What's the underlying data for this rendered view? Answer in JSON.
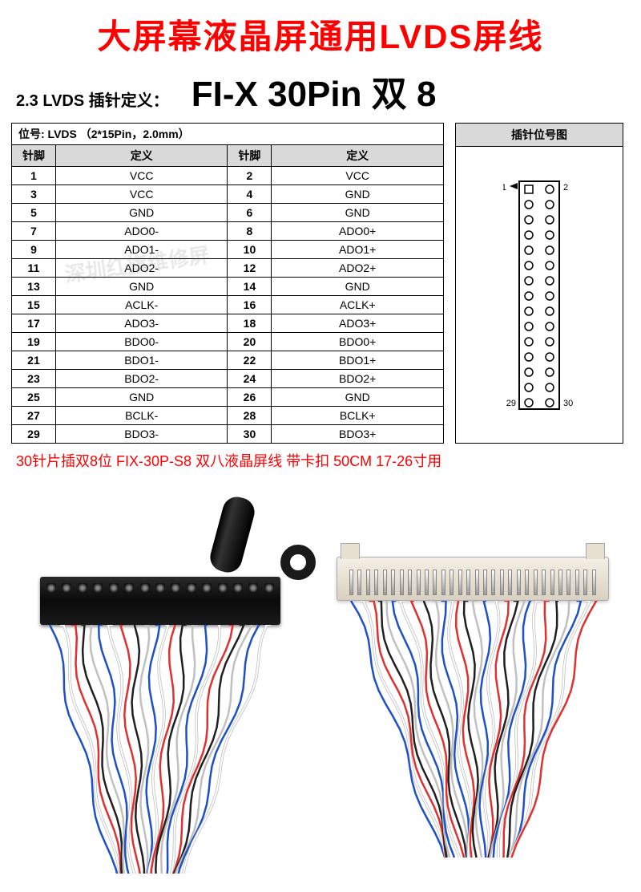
{
  "title": "大屏幕液晶屏通用LVDS屏线",
  "section_label": "2.3 LVDS 插针定义：",
  "section_big": "FI-X 30Pin 双 8",
  "table_span_header": "位号: LVDS （2*15Pin，2.0mm）",
  "diagram_header": "插针位号图",
  "col_pin": "针脚",
  "col_def": "定义",
  "pin_label_1": "1",
  "pin_label_2": "2",
  "pin_label_29": "29",
  "pin_label_30": "30",
  "rows": [
    {
      "p1": "1",
      "d1": "VCC",
      "p2": "2",
      "d2": "VCC"
    },
    {
      "p1": "3",
      "d1": "VCC",
      "p2": "4",
      "d2": "GND"
    },
    {
      "p1": "5",
      "d1": "GND",
      "p2": "6",
      "d2": "GND"
    },
    {
      "p1": "7",
      "d1": "ADO0-",
      "p2": "8",
      "d2": "ADO0+"
    },
    {
      "p1": "9",
      "d1": "ADO1-",
      "p2": "10",
      "d2": "ADO1+"
    },
    {
      "p1": "11",
      "d1": "ADO2-",
      "p2": "12",
      "d2": "ADO2+"
    },
    {
      "p1": "13",
      "d1": "GND",
      "p2": "14",
      "d2": "GND"
    },
    {
      "p1": "15",
      "d1": "ACLK-",
      "p2": "16",
      "d2": "ACLK+"
    },
    {
      "p1": "17",
      "d1": "ADO3-",
      "p2": "18",
      "d2": "ADO3+"
    },
    {
      "p1": "19",
      "d1": "BDO0-",
      "p2": "20",
      "d2": "BDO0+"
    },
    {
      "p1": "21",
      "d1": "BDO1-",
      "p2": "22",
      "d2": "BDO1+"
    },
    {
      "p1": "23",
      "d1": "BDO2-",
      "p2": "24",
      "d2": "BDO2+"
    },
    {
      "p1": "25",
      "d1": "GND",
      "p2": "26",
      "d2": "GND"
    },
    {
      "p1": "27",
      "d1": "BCLK-",
      "p2": "28",
      "d2": "BCLK+"
    },
    {
      "p1": "29",
      "d1": "BDO3-",
      "p2": "30",
      "d2": "BDO3+"
    }
  ],
  "red_description": "30针片插双8位 FIX-30P-S8 双八液晶屏线 带卡扣 50CM 17-26寸用",
  "watermark": "深圳红旗维修屏",
  "colors": {
    "title_red": "#ff0000",
    "table_header_bg": "#d9d9d9",
    "border": "#000000",
    "wire_colors": [
      "#1e50c8",
      "#ffffff",
      "#e03030",
      "#202020",
      "#c0c0c0"
    ]
  },
  "diagram": {
    "rows": 15,
    "cols": 2,
    "outline_color": "#000000",
    "pin1_marker": "square-triangle"
  }
}
